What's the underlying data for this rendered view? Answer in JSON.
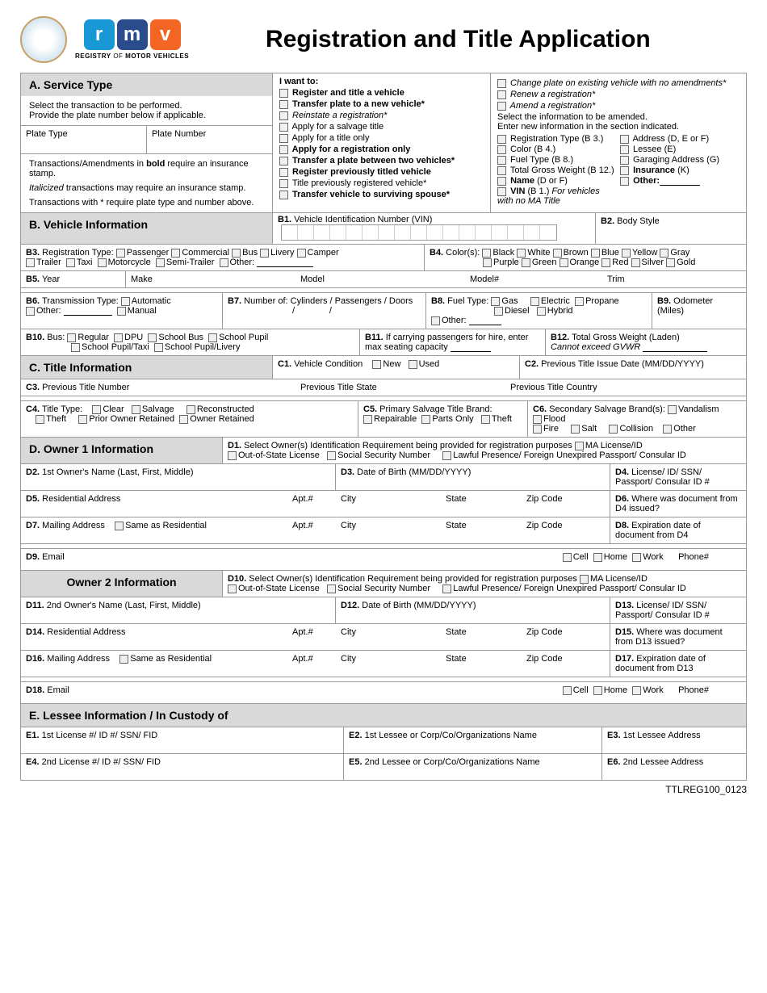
{
  "header": {
    "title": "Registration and Title Application",
    "rmv_tagline": "Registry of Motor Vehicles",
    "rmv_letters": [
      "r",
      "m",
      "v"
    ]
  },
  "A": {
    "heading": "A. Service Type",
    "instr1": "Select the transaction to be performed.",
    "instr2": "Provide the plate number below if applicable.",
    "plate_type_label": "Plate Type",
    "plate_number_label": "Plate Number",
    "note_bold": "Transactions/Amendments in bold require an insurance stamp.",
    "note_italic": "Italicized transactions may require an insurance stamp.",
    "note_star": "Transactions with * require plate type and number above.",
    "want_label": "I want to:",
    "col1": [
      {
        "t": "Register and title a vehicle",
        "b": true
      },
      {
        "t": "Transfer plate to a new vehicle*",
        "b": true
      },
      {
        "t": "Reinstate a registration*",
        "i": true
      },
      {
        "t": "Apply for a salvage title"
      },
      {
        "t": "Apply for a title only"
      },
      {
        "t": "Apply for a registration only",
        "b": true
      },
      {
        "t": "Transfer a plate between two vehicles*",
        "b": true
      },
      {
        "t": "Register previously titled vehicle",
        "b": true
      },
      {
        "t": "Title previously registered vehicle*"
      },
      {
        "t": "Transfer vehicle to surviving spouse*",
        "b": true
      }
    ],
    "col2_top": [
      {
        "t": "Change plate on existing vehicle with no amendments*",
        "i": true
      },
      {
        "t": "Renew a registration*",
        "i": true
      },
      {
        "t": "Amend a registration*",
        "i": true
      }
    ],
    "amend_instr1": "Select the information to be amended.",
    "amend_instr2": "Enter new information in the section indicated.",
    "amend_left": [
      "Registration Type (B 3.)",
      "Color (B 4.)",
      "Fuel Type (B 8.)",
      "Total Gross Weight (B 12.)"
    ],
    "amend_left_bold": [
      {
        "t": "Name",
        "suffix": " (D or F)"
      },
      {
        "t": "VIN",
        "suffix": " (B 1.) For vehicles with no MA Title"
      }
    ],
    "amend_right": [
      "Address (D, E or F)",
      "Lessee (E)",
      "Garaging Address (G)"
    ],
    "amend_right_bold": [
      {
        "t": "Insurance",
        "suffix": " (K)"
      },
      {
        "t": "Other:",
        "suffix": ""
      }
    ]
  },
  "B": {
    "heading": "B. Vehicle Information",
    "b1": "B1. Vehicle Identification Number (VIN)",
    "b2": "B2. Body Style",
    "b3_label": "B3. Registration Type:",
    "b3_opts1": [
      "Passenger",
      "Commercial",
      "Bus",
      "Livery",
      "Camper"
    ],
    "b3_opts2": [
      "Trailer",
      "Taxi",
      "Motorcycle",
      "Semi-Trailer",
      "Other:"
    ],
    "b4_label": "B4. Color(s):",
    "b4_opts1": [
      "Black",
      "White",
      "Brown",
      "Blue",
      "Yellow",
      "Gray"
    ],
    "b4_opts2": [
      "Purple",
      "Green",
      "Orange",
      "Red",
      "Silver",
      "Gold"
    ],
    "b5": {
      "year": "B5. Year",
      "make": "Make",
      "model": "Model",
      "modelnum": "Model#",
      "trim": "Trim"
    },
    "b6_label": "B6. Transmission Type:",
    "b6_opts": [
      "Automatic",
      "Manual"
    ],
    "b6_other": "Other:",
    "b7": "B7. Number of: Cylinders / Passengers / Doors",
    "b8_label": "B8. Fuel Type:",
    "b8_opts": [
      "Gas",
      "Diesel",
      "Electric",
      "Propane",
      "Hybrid",
      "Other:"
    ],
    "b9": "B9. Odometer (Miles)",
    "b10_label": "B10. Bus:",
    "b10_opts": [
      "Regular",
      "DPU",
      "School Bus",
      "School Pupil",
      "School Pupil/Taxi",
      "School Pupil/Livery"
    ],
    "b11": "B11. If carrying passengers for hire, enter max seating capacity",
    "b12": "B12. Total Gross Weight (Laden)",
    "b12_note": "Cannot exceed GVWR"
  },
  "C": {
    "heading": "C. Title Information",
    "c1": "C1. Vehicle Condition",
    "c1_opts": [
      "New",
      "Used"
    ],
    "c2": "C2. Previous Title Issue Date (MM/DD/YYYY)",
    "c3": "C3. Previous Title Number",
    "c3_state": "Previous Title State",
    "c3_country": "Previous Title Country",
    "c4": "C4. Title Type:",
    "c4_opts": [
      "Clear",
      "Salvage",
      "Reconstructed",
      "Theft",
      "Prior Owner Retained",
      "Owner Retained"
    ],
    "c5": "C5. Primary Salvage Title Brand:",
    "c5_opts": [
      "Repairable",
      "Parts Only",
      "Theft"
    ],
    "c6": "C6. Secondary Salvage Brand(s):",
    "c6_opts": [
      "Vandalism",
      "Flood",
      "Fire",
      "Salt",
      "Collision",
      "Other"
    ]
  },
  "D": {
    "heading": "D. Owner 1 Information",
    "d1": "D1. Select Owner(s) Identification Requirement being provided for registration purposes",
    "d1_opts": [
      "MA License/ID",
      "Out-of-State License",
      "Social Security Number",
      "Lawful Presence/ Foreign Unexpired Passport/ Consular ID"
    ],
    "d2": "D2. 1st Owner's Name (Last, First, Middle)",
    "d3": "D3. Date of Birth (MM/DD/YYYY)",
    "d4": "D4. License/ ID/ SSN/ Passport/ Consular ID #",
    "d5": "D5. Residential Address",
    "apt": "Apt.#",
    "city": "City",
    "state": "State",
    "zip": "Zip Code",
    "d6": "D6. Where was document from D4 issued?",
    "d7": "D7. Mailing Address",
    "same": "Same as Residential",
    "d8": "D8. Expiration date of document from D4",
    "d9": "D9. Email",
    "phone_opts": [
      "Cell",
      "Home",
      "Work"
    ],
    "phone": "Phone#",
    "heading2": "Owner 2 Information",
    "d10": "D10. Select Owner(s) Identification Requirement being provided for registration purposes",
    "d11": "D11. 2nd Owner's Name (Last, First, Middle)",
    "d12": "D12. Date of Birth (MM/DD/YYYY)",
    "d13": "D13. License/ ID/ SSN/ Passport/ Consular ID #",
    "d14": "D14. Residential Address",
    "d15": "D15. Where was document from D13 issued?",
    "d16": "D16. Mailing Address",
    "d17": "D17. Expiration date of document from D13",
    "d18": "D18. Email"
  },
  "E": {
    "heading": "E. Lessee Information / In Custody of",
    "e1": "E1. 1st License #/ ID #/ SSN/ FID",
    "e2": "E2. 1st Lessee or Corp/Co/Organizations Name",
    "e3": "E3. 1st Lessee Address",
    "e4": "E4. 2nd License #/ ID #/ SSN/ FID",
    "e5": "E5. 2nd Lessee or Corp/Co/Organizations Name",
    "e6": "E6. 2nd Lessee Address"
  },
  "footer": "TTLREG100_0123"
}
